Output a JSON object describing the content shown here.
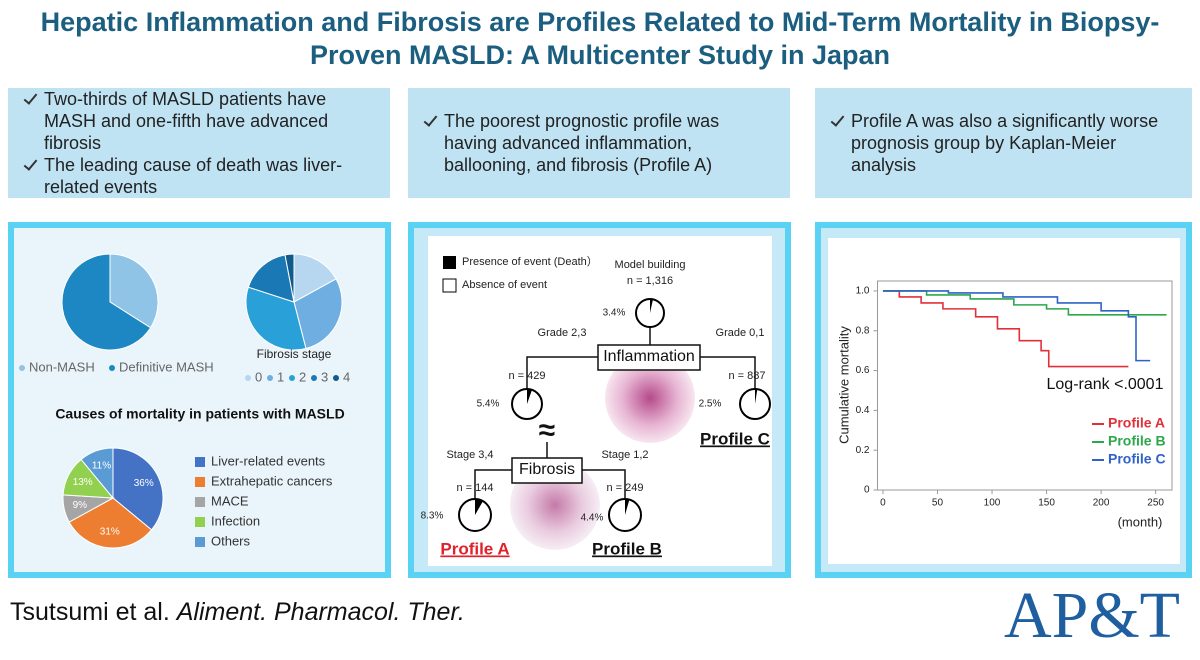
{
  "header": {
    "title": "Hepatic Inflammation and Fibrosis are Profiles Related to Mid-Term Mortality in Biopsy-Proven MASLD: A Multicenter Study in Japan"
  },
  "summary_boxes": [
    {
      "bullets": [
        "Two-thirds of MASLD patients have MASH and one-fifth have advanced fibrosis",
        "The leading cause of death was liver-related events"
      ]
    },
    {
      "bullets": [
        "The poorest prognostic profile was having advanced inflammation, ballooning, and fibrosis (Profile A)"
      ]
    },
    {
      "bullets": [
        "Profile A was also a significantly worse prognosis group by Kaplan-Meier analysis"
      ]
    }
  ],
  "chart_data": [
    {
      "type": "pie",
      "categories": [
        "Non-MASH",
        "Definitive MASH"
      ],
      "values": [
        34,
        66
      ],
      "colors": [
        "#8fc4e6",
        "#1d87c4"
      ]
    },
    {
      "type": "pie",
      "title": "Fibrosis stage",
      "categories": [
        "0",
        "1",
        "2",
        "3",
        "4"
      ],
      "values": [
        17,
        29,
        34,
        17,
        3
      ],
      "colors": [
        "#b7d6ef",
        "#6faee0",
        "#2aa0d8",
        "#1a79b5",
        "#115a8c"
      ]
    },
    {
      "type": "pie",
      "title": "Causes of mortality in patients with MASLD",
      "categories": [
        "Liver-related events",
        "Extrahepatic cancers",
        "MACE",
        "Infection",
        "Others"
      ],
      "values": [
        36,
        31,
        9,
        13,
        11
      ],
      "value_labels": [
        "36%",
        "31%",
        "9%",
        "13%",
        "11%"
      ],
      "colors": [
        "#4472c4",
        "#ed7d31",
        "#a5a5a5",
        "#92d050",
        "#5b9bd5"
      ]
    },
    {
      "type": "line",
      "ylabel": "Cumulative mortality",
      "xlabel": "(month)",
      "annotation": "Log-rank <.0001",
      "xlim": [
        -5,
        265
      ],
      "ylim": [
        0,
        1.05
      ],
      "xticks": [
        0,
        50,
        100,
        150,
        200,
        250
      ],
      "yticks": [
        0,
        0.2,
        0.4,
        0.6,
        0.8,
        {
          "value": 1,
          "label": "1.0"
        }
      ],
      "series": [
        {
          "name": "Profile A",
          "color": "#e0313a",
          "x": [
            0,
            15,
            15,
            35,
            35,
            55,
            55,
            85,
            85,
            105,
            105,
            125,
            125,
            145,
            145,
            152,
            152,
            225
          ],
          "values": [
            1,
            1,
            0.97,
            0.97,
            0.94,
            0.94,
            0.91,
            0.91,
            0.87,
            0.87,
            0.81,
            0.81,
            0.75,
            0.75,
            0.7,
            0.7,
            0.62,
            0.62
          ]
        },
        {
          "name": "Profile B",
          "color": "#2ca84a",
          "x": [
            0,
            40,
            40,
            80,
            80,
            120,
            120,
            150,
            150,
            170,
            170,
            260
          ],
          "values": [
            1,
            1,
            0.98,
            0.98,
            0.96,
            0.96,
            0.93,
            0.93,
            0.91,
            0.91,
            0.88,
            0.88
          ]
        },
        {
          "name": "Profile C",
          "color": "#2f62c8",
          "x": [
            0,
            60,
            60,
            110,
            110,
            160,
            160,
            200,
            200,
            225,
            225,
            232,
            232,
            245
          ],
          "values": [
            1,
            1,
            0.99,
            0.99,
            0.97,
            0.97,
            0.94,
            0.94,
            0.9,
            0.9,
            0.87,
            0.87,
            0.65,
            0.65
          ]
        }
      ]
    }
  ],
  "decision_tree": {
    "legend": [
      "Presence of event (Death）",
      "Absence of event"
    ],
    "splits": [
      {
        "label": "Inflammation",
        "left": "Grade 2,3",
        "right": "Grade 0,1"
      },
      {
        "label": "Fibrosis",
        "left": "Stage 3,4",
        "right": "Stage 1,2"
      }
    ],
    "approx_symbol": "≈",
    "nodes": [
      {
        "title": "Model building",
        "n": "n = 1,316",
        "event_rate": 3.4,
        "event_rate_label": "3.4%"
      },
      {
        "n": "n = 429",
        "event_rate": 5.4,
        "event_rate_label": "5.4%"
      },
      {
        "n": "n = 887",
        "event_rate": 2.5,
        "event_rate_label": "2.5%",
        "profile": "Profile C"
      },
      {
        "n": "n = 144",
        "event_rate": 8.3,
        "event_rate_label": "8.3%",
        "profile": "Profile A"
      },
      {
        "n": "n = 249",
        "event_rate": 4.4,
        "event_rate_label": "4.4%",
        "profile": "Profile B"
      }
    ]
  },
  "footer": {
    "authors": "Tsutsumi et al.",
    "journal": "Aliment. Pharmacol. Ther.",
    "logo": "AP&T"
  }
}
